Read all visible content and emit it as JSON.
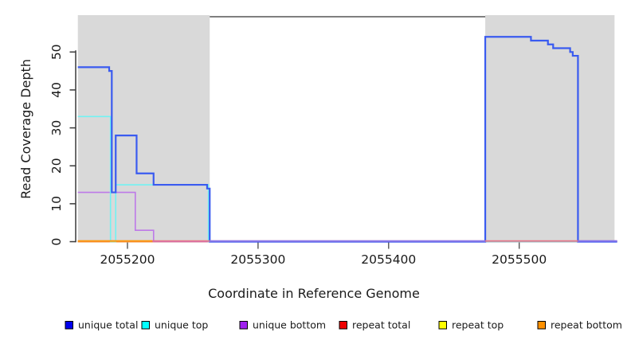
{
  "figure": {
    "kind": "read-coverage-plot"
  },
  "chart_data": {
    "type": "line",
    "subtype": "step-coverage",
    "title": "",
    "xlabel": "Coordinate in Reference Genome",
    "ylabel": "Read Coverage Depth",
    "xlim": [
      2055162,
      2055575
    ],
    "ylim": [
      0,
      59
    ],
    "x_ticks": [
      2055200,
      2055300,
      2055400,
      2055500
    ],
    "y_ticks": [
      0,
      10,
      20,
      30,
      40,
      50
    ],
    "grid": "off",
    "legend_position": "bottom-horizontal",
    "shaded_region_color": "#d9d9d9",
    "shaded_regions": [
      {
        "x0": 2055162,
        "x1": 2055263
      },
      {
        "x0": 2055474,
        "x1": 2055573
      }
    ],
    "series": [
      {
        "name": "unique total",
        "line_color": "#3a5bf0",
        "legend_color": "#0000ee",
        "line_width": 2.2,
        "steps": [
          [
            2055162,
            46
          ],
          [
            2055186,
            45
          ],
          [
            2055188,
            13
          ],
          [
            2055191,
            28
          ],
          [
            2055207,
            18
          ],
          [
            2055220,
            15
          ],
          [
            2055261,
            14
          ],
          [
            2055263,
            0
          ],
          [
            2055474,
            54
          ],
          [
            2055509,
            53
          ],
          [
            2055522,
            52
          ],
          [
            2055526,
            51
          ],
          [
            2055539,
            50
          ],
          [
            2055541,
            49
          ],
          [
            2055545,
            0
          ]
        ]
      },
      {
        "name": "unique top",
        "line_color": "#72f2f2",
        "legend_color": "#00ffff",
        "line_width": 1.6,
        "steps": [
          [
            2055162,
            33
          ],
          [
            2055187,
            0
          ],
          [
            2055191,
            15
          ],
          [
            2055262,
            0
          ]
        ]
      },
      {
        "name": "unique bottom",
        "line_color": "#bd7ae8",
        "legend_color": "#a020f0",
        "line_width": 1.6,
        "steps": [
          [
            2055162,
            13
          ],
          [
            2055206,
            3
          ],
          [
            2055220,
            0
          ]
        ]
      },
      {
        "name": "repeat total",
        "line_color": "#e87286",
        "legend_color": "#ee0000",
        "line_width": 1.6,
        "steps": [
          [
            2055162,
            0
          ]
        ]
      },
      {
        "name": "repeat top",
        "line_color": "#ffff00",
        "legend_color": "#ffff00",
        "line_width": 1.6,
        "steps": [
          [
            2055162,
            0
          ]
        ]
      },
      {
        "name": "repeat bottom",
        "line_color": "#ff9d00",
        "legend_color": "#ff9100",
        "line_width": 1.8,
        "steps": [
          [
            2055162,
            0
          ]
        ]
      }
    ],
    "baseline_segments": [
      {
        "x0": 2055162,
        "x1": 2055575,
        "color": "#e87286"
      },
      {
        "x0": 2055162,
        "x1": 2055219,
        "color": "#ff9d00"
      },
      {
        "x0": 2055263,
        "x1": 2055474,
        "color": "#8678ee"
      },
      {
        "x0": 2055545,
        "x1": 2055575,
        "color": "#7d72f2"
      }
    ]
  },
  "legend": {
    "items": [
      {
        "label": "unique total",
        "color": "#0000ee"
      },
      {
        "label": "unique top",
        "color": "#00ffff"
      },
      {
        "label": "unique bottom",
        "color": "#a020f0"
      },
      {
        "label": "repeat total",
        "color": "#ee0000"
      },
      {
        "label": "repeat top",
        "color": "#ffff00"
      },
      {
        "label": "repeat bottom",
        "color": "#ff9100"
      }
    ]
  },
  "axes": {
    "x_title": "Coordinate in Reference Genome",
    "y_title": "Read Coverage Depth"
  }
}
